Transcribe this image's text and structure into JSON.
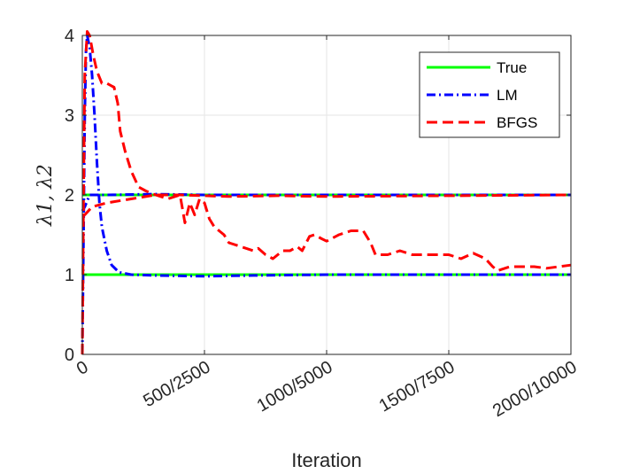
{
  "chart_data": {
    "type": "line",
    "title": "",
    "xlabel": "Iteration",
    "ylabel": "λ1, λ2",
    "xlim": [
      0,
      2000
    ],
    "ylim": [
      0,
      4
    ],
    "xticks": [
      0,
      500,
      1000,
      1500,
      2000
    ],
    "xtick_labels": [
      "0",
      "500/2500",
      "1000/5000",
      "1500/7500",
      "2000/10000"
    ],
    "yticks": [
      0,
      1,
      2,
      3,
      4
    ],
    "ytick_labels": [
      "0",
      "1",
      "2",
      "3",
      "4"
    ],
    "grid": true,
    "legend_position": "top-right",
    "series": [
      {
        "name": "True",
        "color": "#00ff00",
        "style": "solid",
        "lines": [
          [
            [
              0,
              1
            ],
            [
              2000,
              1
            ]
          ],
          [
            [
              0,
              2
            ],
            [
              2000,
              2
            ]
          ]
        ]
      },
      {
        "name": "LM",
        "color": "#0000ff",
        "style": "dashdot",
        "lines": [
          [
            [
              0,
              0
            ],
            [
              5,
              1.5
            ],
            [
              10,
              3.0
            ],
            [
              15,
              3.8
            ],
            [
              20,
              4.0
            ],
            [
              30,
              3.85
            ],
            [
              40,
              3.5
            ],
            [
              50,
              3.0
            ],
            [
              60,
              2.4
            ],
            [
              70,
              1.9
            ],
            [
              80,
              1.6
            ],
            [
              100,
              1.3
            ],
            [
              120,
              1.12
            ],
            [
              150,
              1.03
            ],
            [
              200,
              1.0
            ],
            [
              300,
              0.99
            ],
            [
              500,
              0.98
            ],
            [
              700,
              0.99
            ],
            [
              1000,
              1.0
            ],
            [
              2000,
              1.0
            ]
          ],
          [
            [
              0,
              1.8
            ],
            [
              10,
              1.85
            ],
            [
              30,
              2.0
            ],
            [
              100,
              2.0
            ],
            [
              300,
              2.01
            ],
            [
              500,
              2.0
            ],
            [
              1000,
              2.0
            ],
            [
              2000,
              2.0
            ]
          ]
        ]
      },
      {
        "name": "BFGS",
        "color": "#ff0000",
        "style": "dashed",
        "lines": [
          [
            [
              0,
              0
            ],
            [
              5,
              2.0
            ],
            [
              10,
              3.5
            ],
            [
              20,
              4.05
            ],
            [
              30,
              4.0
            ],
            [
              45,
              3.75
            ],
            [
              60,
              3.55
            ],
            [
              80,
              3.4
            ],
            [
              100,
              3.4
            ],
            [
              130,
              3.35
            ],
            [
              145,
              3.15
            ],
            [
              155,
              2.8
            ],
            [
              175,
              2.55
            ],
            [
              200,
              2.3
            ],
            [
              230,
              2.1
            ],
            [
              260,
              2.05
            ],
            [
              300,
              2.0
            ],
            [
              350,
              1.95
            ],
            [
              400,
              2.0
            ],
            [
              420,
              1.65
            ],
            [
              440,
              1.9
            ],
            [
              460,
              1.75
            ],
            [
              480,
              1.95
            ],
            [
              500,
              1.9
            ],
            [
              520,
              1.7
            ],
            [
              540,
              1.6
            ],
            [
              560,
              1.55
            ],
            [
              580,
              1.5
            ],
            [
              600,
              1.4
            ],
            [
              650,
              1.35
            ],
            [
              700,
              1.3
            ],
            [
              720,
              1.33
            ],
            [
              750,
              1.25
            ],
            [
              780,
              1.2
            ],
            [
              800,
              1.25
            ],
            [
              820,
              1.3
            ],
            [
              850,
              1.3
            ],
            [
              880,
              1.35
            ],
            [
              900,
              1.3
            ],
            [
              930,
              1.48
            ],
            [
              950,
              1.5
            ],
            [
              980,
              1.45
            ],
            [
              1000,
              1.42
            ],
            [
              1050,
              1.5
            ],
            [
              1100,
              1.55
            ],
            [
              1150,
              1.55
            ],
            [
              1180,
              1.4
            ],
            [
              1200,
              1.25
            ],
            [
              1250,
              1.25
            ],
            [
              1300,
              1.3
            ],
            [
              1350,
              1.25
            ],
            [
              1400,
              1.25
            ],
            [
              1450,
              1.25
            ],
            [
              1500,
              1.25
            ],
            [
              1550,
              1.2
            ],
            [
              1600,
              1.27
            ],
            [
              1650,
              1.2
            ],
            [
              1680,
              1.1
            ],
            [
              1700,
              1.05
            ],
            [
              1750,
              1.1
            ],
            [
              1800,
              1.1
            ],
            [
              1850,
              1.1
            ],
            [
              1900,
              1.08
            ],
            [
              1950,
              1.1
            ],
            [
              2000,
              1.12
            ]
          ],
          [
            [
              0,
              1.75
            ],
            [
              10,
              1.75
            ],
            [
              40,
              1.85
            ],
            [
              100,
              1.9
            ],
            [
              200,
              1.95
            ],
            [
              300,
              2.0
            ],
            [
              400,
              2.0
            ],
            [
              500,
              1.99
            ],
            [
              600,
              1.98
            ],
            [
              800,
              1.99
            ],
            [
              1000,
              1.98
            ],
            [
              1500,
              1.99
            ],
            [
              2000,
              2.0
            ]
          ]
        ]
      }
    ]
  }
}
